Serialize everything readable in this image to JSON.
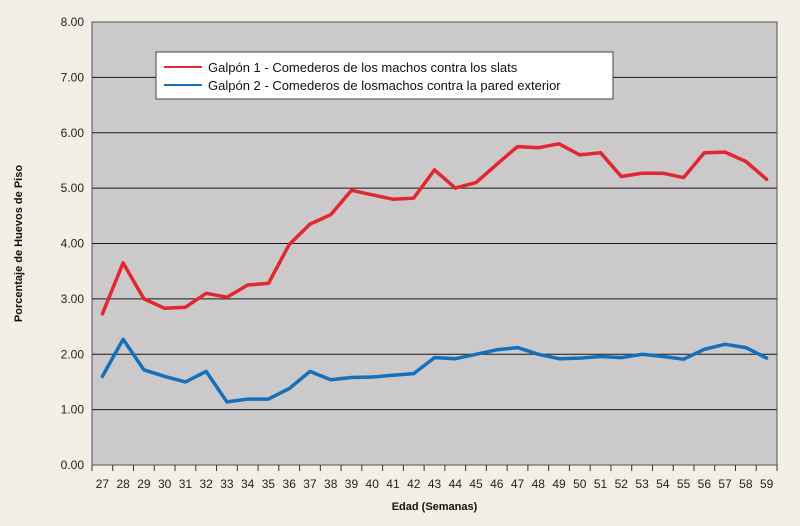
{
  "chart_data": {
    "type": "line",
    "x": [
      "27",
      "28",
      "29",
      "30",
      "31",
      "32",
      "33",
      "34",
      "35",
      "36",
      "37",
      "38",
      "39",
      "40",
      "41",
      "42",
      "43",
      "44",
      "45",
      "46",
      "47",
      "48",
      "49",
      "50",
      "51",
      "52",
      "53",
      "54",
      "55",
      "56",
      "57",
      "58",
      "59"
    ],
    "series": [
      {
        "name": "Galpón 1 - Comederos de los machos contra los slats",
        "color": "#e3262f",
        "values": [
          2.73,
          3.65,
          3.0,
          2.83,
          2.85,
          3.1,
          3.03,
          3.25,
          3.28,
          3.98,
          4.35,
          4.52,
          4.96,
          4.88,
          4.8,
          4.82,
          5.33,
          5.0,
          5.1,
          5.43,
          5.75,
          5.73,
          5.8,
          5.6,
          5.64,
          5.21,
          5.27,
          5.27,
          5.19,
          5.64,
          5.65,
          5.48,
          5.16
        ]
      },
      {
        "name": "Galpón 2 - Comederos de losmachos contra la pared exterior",
        "color": "#1570bc",
        "values": [
          1.6,
          2.27,
          1.72,
          1.6,
          1.5,
          1.69,
          1.14,
          1.19,
          1.19,
          1.38,
          1.69,
          1.54,
          1.58,
          1.59,
          1.62,
          1.65,
          1.94,
          1.92,
          2.0,
          2.08,
          2.12,
          2.0,
          1.92,
          1.93,
          1.96,
          1.94,
          2.0,
          1.96,
          1.91,
          2.09,
          2.18,
          2.12,
          1.93
        ]
      }
    ],
    "y_ticks": [
      "0.00",
      "1.00",
      "2.00",
      "3.00",
      "4.00",
      "5.00",
      "6.00",
      "7.00",
      "8.00"
    ],
    "ylim": [
      0,
      8
    ],
    "xlabel": "Edad (Semanas)",
    "ylabel": "Porcentaje de Huevos de Piso",
    "grid": true,
    "legend_position": "top-center",
    "plot_background": "#cbc9ca",
    "grid_color": "#1a1a1a"
  }
}
